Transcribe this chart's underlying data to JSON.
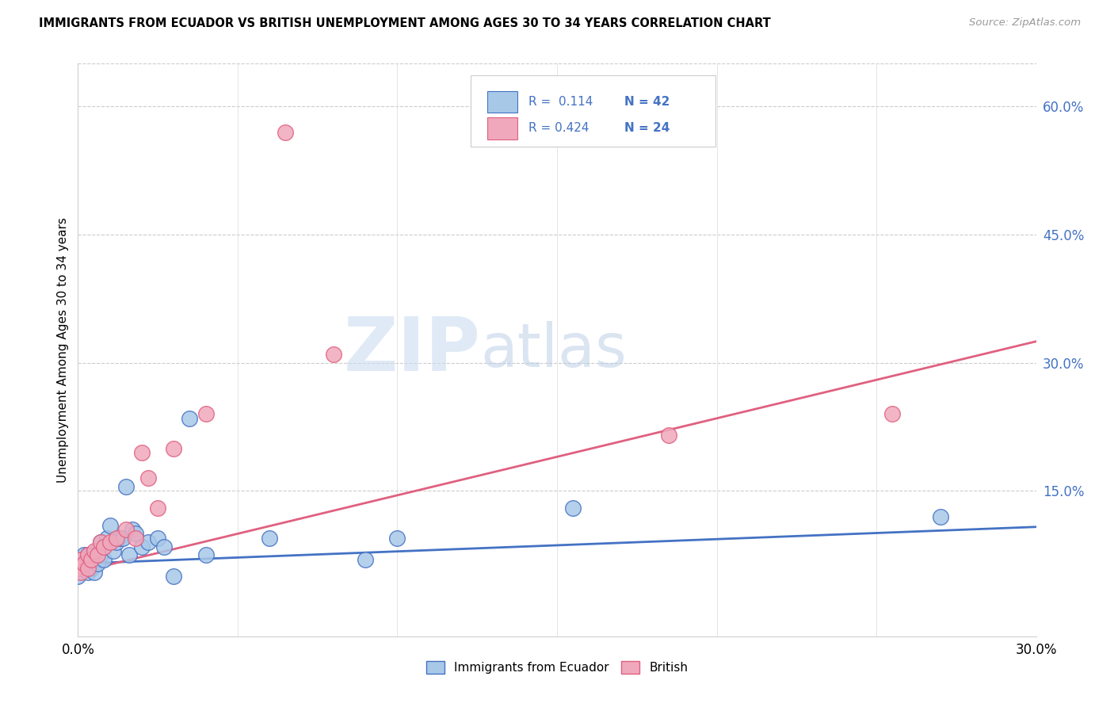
{
  "title": "IMMIGRANTS FROM ECUADOR VS BRITISH UNEMPLOYMENT AMONG AGES 30 TO 34 YEARS CORRELATION CHART",
  "source": "Source: ZipAtlas.com",
  "ylabel": "Unemployment Among Ages 30 to 34 years",
  "right_yticks": [
    0.0,
    0.15,
    0.3,
    0.45,
    0.6
  ],
  "right_yticklabels": [
    "",
    "15.0%",
    "30.0%",
    "45.0%",
    "60.0%"
  ],
  "xlim": [
    0.0,
    0.3
  ],
  "ylim": [
    -0.02,
    0.65
  ],
  "legend_label1": "Immigrants from Ecuador",
  "legend_label2": "British",
  "color_blue": "#a8c8e8",
  "color_pink": "#f0a8bc",
  "color_blue_line": "#4472c4",
  "color_pink_line": "#e06080",
  "color_blue_text": "#4472c4",
  "watermark_zip": "ZIP",
  "watermark_atlas": "atlas",
  "blue_points_x": [
    0.0,
    0.001,
    0.001,
    0.002,
    0.002,
    0.002,
    0.003,
    0.003,
    0.003,
    0.004,
    0.004,
    0.004,
    0.005,
    0.005,
    0.006,
    0.006,
    0.007,
    0.007,
    0.008,
    0.008,
    0.009,
    0.01,
    0.011,
    0.012,
    0.013,
    0.014,
    0.015,
    0.016,
    0.017,
    0.018,
    0.02,
    0.022,
    0.025,
    0.027,
    0.03,
    0.035,
    0.04,
    0.06,
    0.09,
    0.1,
    0.155,
    0.27
  ],
  "blue_points_y": [
    0.05,
    0.06,
    0.07,
    0.06,
    0.065,
    0.075,
    0.055,
    0.065,
    0.075,
    0.06,
    0.065,
    0.075,
    0.055,
    0.07,
    0.065,
    0.08,
    0.075,
    0.09,
    0.07,
    0.085,
    0.095,
    0.11,
    0.08,
    0.09,
    0.095,
    0.095,
    0.155,
    0.075,
    0.105,
    0.1,
    0.085,
    0.09,
    0.095,
    0.085,
    0.05,
    0.235,
    0.075,
    0.095,
    0.07,
    0.095,
    0.13,
    0.12
  ],
  "pink_points_x": [
    0.0,
    0.001,
    0.001,
    0.002,
    0.003,
    0.003,
    0.004,
    0.005,
    0.006,
    0.007,
    0.008,
    0.01,
    0.012,
    0.015,
    0.018,
    0.02,
    0.022,
    0.025,
    0.03,
    0.04,
    0.065,
    0.08,
    0.185,
    0.255
  ],
  "pink_points_y": [
    0.06,
    0.055,
    0.07,
    0.065,
    0.06,
    0.075,
    0.07,
    0.08,
    0.075,
    0.09,
    0.085,
    0.09,
    0.095,
    0.105,
    0.095,
    0.195,
    0.165,
    0.13,
    0.2,
    0.24,
    0.57,
    0.31,
    0.215,
    0.24
  ],
  "blue_trend_x": [
    0.0,
    0.3
  ],
  "blue_trend_y": [
    0.065,
    0.108
  ],
  "pink_trend_x": [
    0.0,
    0.3
  ],
  "pink_trend_y": [
    0.055,
    0.325
  ]
}
